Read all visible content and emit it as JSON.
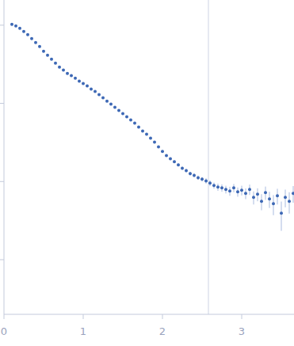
{
  "chart_data": {
    "type": "scatter",
    "log": "y",
    "tick_labels": "x",
    "grid": false,
    "color": "#3d68b5",
    "marker": "circle",
    "xlim": [
      0,
      3.66
    ],
    "xticks": [
      0,
      1,
      2,
      3
    ],
    "ylim": [
      0.0002,
      2.1
    ],
    "yticks": [
      0.001,
      0.01,
      0.1,
      1
    ],
    "vline": 2.58,
    "x": [
      0.1,
      0.15,
      0.2,
      0.25,
      0.3,
      0.35,
      0.4,
      0.45,
      0.5,
      0.55,
      0.6,
      0.65,
      0.7,
      0.75,
      0.8,
      0.85,
      0.9,
      0.95,
      1.0,
      1.05,
      1.1,
      1.15,
      1.2,
      1.25,
      1.3,
      1.35,
      1.4,
      1.45,
      1.5,
      1.55,
      1.6,
      1.65,
      1.7,
      1.75,
      1.8,
      1.85,
      1.9,
      1.95,
      2.0,
      2.05,
      2.1,
      2.15,
      2.2,
      2.25,
      2.3,
      2.35,
      2.4,
      2.45,
      2.5,
      2.55,
      2.6,
      2.65,
      2.7,
      2.75,
      2.8,
      2.85,
      2.9,
      2.95,
      3.0,
      3.05,
      3.1,
      3.15,
      3.2,
      3.25,
      3.3,
      3.35,
      3.4,
      3.45,
      3.5,
      3.55,
      3.6,
      3.65
    ],
    "values": [
      1.023,
      0.977,
      0.911,
      0.83,
      0.756,
      0.673,
      0.599,
      0.534,
      0.464,
      0.413,
      0.368,
      0.327,
      0.291,
      0.266,
      0.242,
      0.226,
      0.21,
      0.192,
      0.179,
      0.167,
      0.152,
      0.142,
      0.129,
      0.118,
      0.107,
      0.0977,
      0.089,
      0.0811,
      0.0739,
      0.0673,
      0.0614,
      0.0559,
      0.0498,
      0.0443,
      0.0404,
      0.0359,
      0.032,
      0.0278,
      0.0242,
      0.0215,
      0.0196,
      0.0179,
      0.0163,
      0.0148,
      0.0138,
      0.0126,
      0.012,
      0.0112,
      0.0107,
      0.0102,
      0.00954,
      0.0089,
      0.0085,
      0.0083,
      0.00793,
      0.00757,
      0.0083,
      0.00739,
      0.00774,
      0.00705,
      0.00793,
      0.00628,
      0.00689,
      0.00559,
      0.00722,
      0.00599,
      0.00521,
      0.00658,
      0.00394,
      0.00628,
      0.00559,
      0.00705
    ],
    "errors": [
      0.02,
      0.015,
      0.012,
      0.01,
      0.009,
      0.008,
      0.007,
      0.006,
      0.005,
      0.005,
      0.004,
      0.004,
      0.003,
      0.003,
      0.003,
      0.003,
      0.003,
      0.002,
      0.002,
      0.002,
      0.002,
      0.002,
      0.002,
      0.002,
      0.002,
      0.002,
      0.0015,
      0.0015,
      0.0015,
      0.0015,
      0.0012,
      0.0012,
      0.001,
      0.001,
      0.001,
      0.0009,
      0.0008,
      0.0008,
      0.0007,
      0.0007,
      0.0007,
      0.0007,
      0.0007,
      0.0007,
      0.0007,
      0.0007,
      0.0007,
      0.0007,
      0.0007,
      0.0008,
      0.0008,
      0.0008,
      0.0009,
      0.0009,
      0.0009,
      0.001,
      0.001,
      0.001,
      0.0011,
      0.0011,
      0.0012,
      0.0012,
      0.0013,
      0.0013,
      0.0014,
      0.0014,
      0.0015,
      0.0015,
      0.0016,
      0.0016,
      0.0017,
      0.0017
    ]
  }
}
